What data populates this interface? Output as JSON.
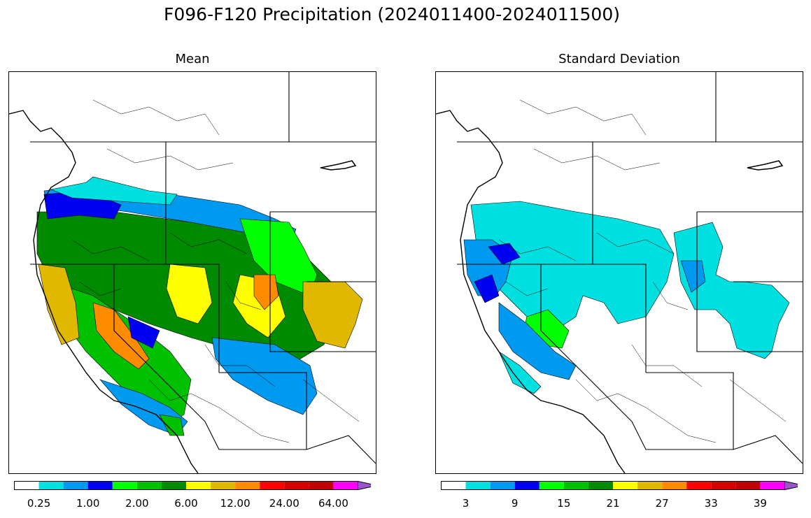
{
  "figure": {
    "title": "F096-F120 Precipitation (2024011400-2024011500)"
  },
  "panels": [
    {
      "title": "Mean",
      "colorbar": {
        "colors": [
          "#ffffff",
          "#00e0e0",
          "#0099f0",
          "#0000f0",
          "#00ff00",
          "#00c000",
          "#008a00",
          "#ffff00",
          "#e0b800",
          "#ff8c00",
          "#ff0000",
          "#d40000",
          "#c00000",
          "#ff00ff",
          "#9955cc"
        ],
        "tick_labels": [
          "0.25",
          "1.00",
          "2.00",
          "6.00",
          "12.00",
          "24.00",
          "64.00"
        ],
        "tick_boundaries": [
          1,
          3,
          5,
          7,
          9,
          11,
          13
        ]
      }
    },
    {
      "title": "Standard Deviation",
      "colorbar": {
        "colors": [
          "#ffffff",
          "#00e0e0",
          "#0099f0",
          "#0000f0",
          "#00ff00",
          "#00c000",
          "#008a00",
          "#ffff00",
          "#e0b800",
          "#ff8c00",
          "#ff0000",
          "#d40000",
          "#c00000",
          "#ff00ff",
          "#9955cc"
        ],
        "tick_labels": [
          "3",
          "9",
          "15",
          "21",
          "27",
          "33",
          "39"
        ],
        "tick_boundaries": [
          1,
          3,
          5,
          7,
          9,
          11,
          13
        ]
      }
    }
  ]
}
